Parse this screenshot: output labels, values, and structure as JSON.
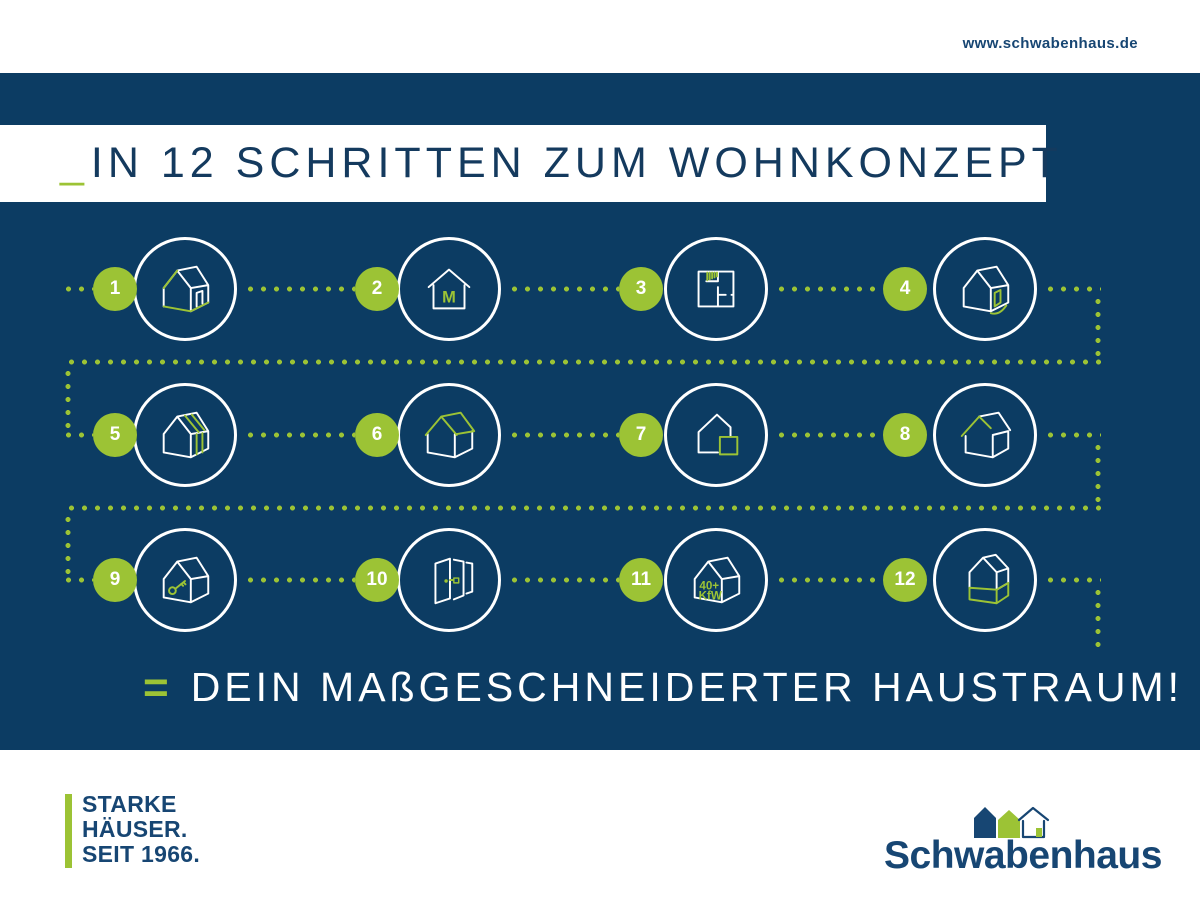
{
  "top_bar": {
    "url": "www.schwabenhaus.de"
  },
  "banner": {
    "prefix": "_",
    "title": "IN 12 SCHRITTEN ZUM WOHNKONZEPT"
  },
  "steps": [
    {
      "number": "1",
      "icon": "house-exterior-icon"
    },
    {
      "number": "2",
      "icon": "musterhaus-icon",
      "icon_text": "M"
    },
    {
      "number": "3",
      "icon": "floor-plan-icon"
    },
    {
      "number": "4",
      "icon": "house-entrance-icon"
    },
    {
      "number": "5",
      "icon": "house-construction-icon"
    },
    {
      "number": "6",
      "icon": "house-roof-icon"
    },
    {
      "number": "7",
      "icon": "house-extension-icon"
    },
    {
      "number": "8",
      "icon": "house-gable-icon"
    },
    {
      "number": "9",
      "icon": "house-key-icon"
    },
    {
      "number": "10",
      "icon": "doors-icon"
    },
    {
      "number": "11",
      "icon": "kfw-house-icon",
      "icon_text": "40+ KfW"
    },
    {
      "number": "12",
      "icon": "two-story-house-icon"
    }
  ],
  "result": {
    "equals": "=",
    "text": "DEIN MAßGESCHNEIDERTER HAUSTRAUM!"
  },
  "footer": {
    "claim_lines": [
      "STARKE",
      "HÄUSER.",
      "SEIT 1966."
    ],
    "logo_text": "Schwabenhaus"
  },
  "colors": {
    "navy": "#0c3c63",
    "navy_text": "#174673",
    "green": "#9cc335",
    "white": "#ffffff"
  }
}
